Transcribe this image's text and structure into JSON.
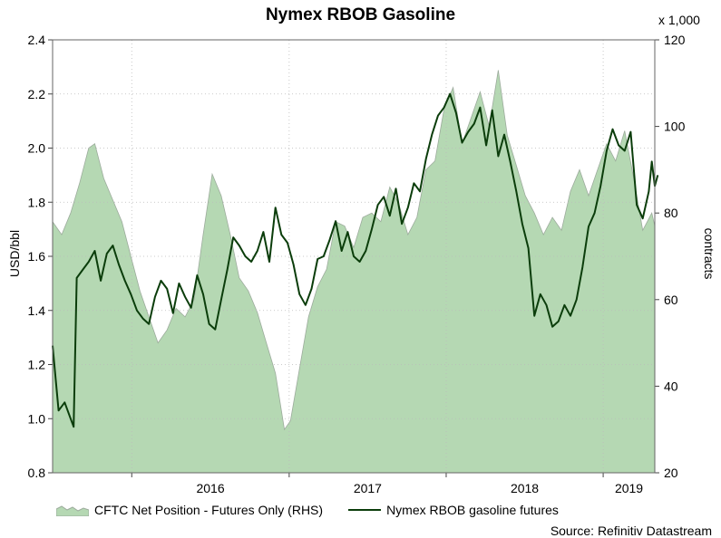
{
  "title": "Nymex RBOB Gasoline",
  "multiplier_label": "x 1,000",
  "y_left_label": "USD/bbl",
  "y_right_label": "contracts",
  "source": "Source: Refinitiv Datastream",
  "legend": {
    "area_label": "CFTC Net Position - Futures Only (RHS)",
    "line_label": "Nymex RBOB gasoline futures"
  },
  "colors": {
    "area_fill": "#b5d8b3",
    "area_edge": "#9cab9c",
    "line": "#0b3d0b",
    "grid": "#bbbbbb"
  },
  "chart_data": {
    "type": "line",
    "x_range": [
      "2015-07-01",
      "2019-05-01"
    ],
    "x_ticks": [
      {
        "label": "2016",
        "date": "2016-01-01"
      },
      {
        "label": "2017",
        "date": "2017-01-01"
      },
      {
        "label": "2018",
        "date": "2018-01-01"
      },
      {
        "label": "2019",
        "date": "2019-01-01"
      }
    ],
    "y_left": {
      "label": "USD/bbl",
      "range": [
        0.8,
        2.4
      ],
      "ticks": [
        "0.8",
        "1.0",
        "1.2",
        "1.4",
        "1.6",
        "1.8",
        "2.0",
        "2.2",
        "2.4"
      ]
    },
    "y_right": {
      "label": "contracts",
      "range": [
        20,
        120
      ],
      "ticks": [
        "20",
        "40",
        "60",
        "80",
        "100",
        "120"
      ]
    },
    "grid": true,
    "legend_position": "bottom",
    "series": [
      {
        "name": "CFTC Net Position - Futures Only (RHS)",
        "kind": "area",
        "axis": "right",
        "points": [
          [
            "2015-07-01",
            78
          ],
          [
            "2015-07-22",
            75
          ],
          [
            "2015-08-12",
            80
          ],
          [
            "2015-09-02",
            87
          ],
          [
            "2015-09-23",
            95
          ],
          [
            "2015-10-07",
            96
          ],
          [
            "2015-10-28",
            88
          ],
          [
            "2015-11-18",
            83
          ],
          [
            "2015-12-09",
            78
          ],
          [
            "2015-12-30",
            70
          ],
          [
            "2016-01-20",
            62
          ],
          [
            "2016-02-10",
            56
          ],
          [
            "2016-03-02",
            50
          ],
          [
            "2016-03-23",
            53
          ],
          [
            "2016-04-13",
            58
          ],
          [
            "2016-05-04",
            56
          ],
          [
            "2016-05-25",
            60
          ],
          [
            "2016-06-15",
            75
          ],
          [
            "2016-07-06",
            89
          ],
          [
            "2016-07-27",
            84
          ],
          [
            "2016-08-17",
            75
          ],
          [
            "2016-09-07",
            65
          ],
          [
            "2016-09-28",
            62
          ],
          [
            "2016-10-19",
            57
          ],
          [
            "2016-11-09",
            50
          ],
          [
            "2016-11-30",
            43
          ],
          [
            "2016-12-21",
            30
          ],
          [
            "2017-01-04",
            32
          ],
          [
            "2017-01-25",
            44
          ],
          [
            "2017-02-15",
            56
          ],
          [
            "2017-03-08",
            63
          ],
          [
            "2017-03-29",
            67
          ],
          [
            "2017-04-19",
            78
          ],
          [
            "2017-05-10",
            77
          ],
          [
            "2017-05-31",
            72
          ],
          [
            "2017-06-21",
            79
          ],
          [
            "2017-07-12",
            80
          ],
          [
            "2017-08-02",
            78
          ],
          [
            "2017-08-23",
            86
          ],
          [
            "2017-09-13",
            82
          ],
          [
            "2017-10-04",
            75
          ],
          [
            "2017-10-25",
            79
          ],
          [
            "2017-11-15",
            90
          ],
          [
            "2017-12-06",
            92
          ],
          [
            "2017-12-27",
            104
          ],
          [
            "2018-01-17",
            109
          ],
          [
            "2018-02-07",
            96
          ],
          [
            "2018-02-28",
            102
          ],
          [
            "2018-03-21",
            108
          ],
          [
            "2018-04-11",
            100
          ],
          [
            "2018-05-02",
            113
          ],
          [
            "2018-05-23",
            98
          ],
          [
            "2018-06-13",
            91
          ],
          [
            "2018-07-04",
            84
          ],
          [
            "2018-07-25",
            80
          ],
          [
            "2018-08-15",
            75
          ],
          [
            "2018-09-05",
            79
          ],
          [
            "2018-09-26",
            76
          ],
          [
            "2018-10-17",
            85
          ],
          [
            "2018-11-07",
            90
          ],
          [
            "2018-11-28",
            84
          ],
          [
            "2018-12-19",
            90
          ],
          [
            "2019-01-09",
            96
          ],
          [
            "2019-01-30",
            92
          ],
          [
            "2019-02-20",
            99
          ],
          [
            "2019-03-13",
            88
          ],
          [
            "2019-04-03",
            76
          ],
          [
            "2019-04-24",
            80
          ],
          [
            "2019-05-01",
            77
          ]
        ]
      },
      {
        "name": "Nymex RBOB gasoline futures",
        "kind": "line",
        "axis": "left",
        "points": [
          [
            "2015-07-01",
            1.27
          ],
          [
            "2015-07-15",
            1.03
          ],
          [
            "2015-07-29",
            1.06
          ],
          [
            "2015-08-12",
            1.0
          ],
          [
            "2015-08-19",
            0.97
          ],
          [
            "2015-08-26",
            1.52
          ],
          [
            "2015-09-09",
            1.55
          ],
          [
            "2015-09-23",
            1.58
          ],
          [
            "2015-10-07",
            1.62
          ],
          [
            "2015-10-21",
            1.51
          ],
          [
            "2015-11-04",
            1.61
          ],
          [
            "2015-11-18",
            1.64
          ],
          [
            "2015-12-02",
            1.57
          ],
          [
            "2015-12-16",
            1.51
          ],
          [
            "2015-12-30",
            1.46
          ],
          [
            "2016-01-13",
            1.4
          ],
          [
            "2016-01-27",
            1.37
          ],
          [
            "2016-02-10",
            1.35
          ],
          [
            "2016-02-24",
            1.45
          ],
          [
            "2016-03-09",
            1.51
          ],
          [
            "2016-03-23",
            1.48
          ],
          [
            "2016-04-06",
            1.39
          ],
          [
            "2016-04-20",
            1.5
          ],
          [
            "2016-05-04",
            1.45
          ],
          [
            "2016-05-18",
            1.41
          ],
          [
            "2016-06-01",
            1.53
          ],
          [
            "2016-06-15",
            1.46
          ],
          [
            "2016-06-29",
            1.35
          ],
          [
            "2016-07-13",
            1.33
          ],
          [
            "2016-07-27",
            1.44
          ],
          [
            "2016-08-10",
            1.55
          ],
          [
            "2016-08-24",
            1.67
          ],
          [
            "2016-09-07",
            1.64
          ],
          [
            "2016-09-21",
            1.6
          ],
          [
            "2016-10-05",
            1.58
          ],
          [
            "2016-10-19",
            1.62
          ],
          [
            "2016-11-02",
            1.69
          ],
          [
            "2016-11-16",
            1.58
          ],
          [
            "2016-11-30",
            1.78
          ],
          [
            "2016-12-14",
            1.68
          ],
          [
            "2016-12-28",
            1.65
          ],
          [
            "2017-01-11",
            1.57
          ],
          [
            "2017-01-25",
            1.46
          ],
          [
            "2017-02-08",
            1.42
          ],
          [
            "2017-02-22",
            1.48
          ],
          [
            "2017-03-08",
            1.59
          ],
          [
            "2017-03-22",
            1.6
          ],
          [
            "2017-04-05",
            1.66
          ],
          [
            "2017-04-19",
            1.73
          ],
          [
            "2017-05-03",
            1.62
          ],
          [
            "2017-05-17",
            1.69
          ],
          [
            "2017-05-31",
            1.6
          ],
          [
            "2017-06-14",
            1.58
          ],
          [
            "2017-06-28",
            1.62
          ],
          [
            "2017-07-12",
            1.7
          ],
          [
            "2017-07-26",
            1.79
          ],
          [
            "2017-08-09",
            1.82
          ],
          [
            "2017-08-23",
            1.75
          ],
          [
            "2017-09-06",
            1.85
          ],
          [
            "2017-09-20",
            1.72
          ],
          [
            "2017-10-04",
            1.78
          ],
          [
            "2017-10-18",
            1.87
          ],
          [
            "2017-11-01",
            1.84
          ],
          [
            "2017-11-15",
            1.96
          ],
          [
            "2017-11-29",
            2.05
          ],
          [
            "2017-12-13",
            2.12
          ],
          [
            "2017-12-27",
            2.15
          ],
          [
            "2018-01-10",
            2.2
          ],
          [
            "2018-01-24",
            2.13
          ],
          [
            "2018-02-07",
            2.02
          ],
          [
            "2018-02-21",
            2.06
          ],
          [
            "2018-03-07",
            2.09
          ],
          [
            "2018-03-21",
            2.15
          ],
          [
            "2018-04-04",
            2.01
          ],
          [
            "2018-04-18",
            2.14
          ],
          [
            "2018-05-02",
            1.97
          ],
          [
            "2018-05-16",
            2.05
          ],
          [
            "2018-05-30",
            1.95
          ],
          [
            "2018-06-13",
            1.84
          ],
          [
            "2018-06-27",
            1.72
          ],
          [
            "2018-07-11",
            1.63
          ],
          [
            "2018-07-25",
            1.38
          ],
          [
            "2018-08-08",
            1.46
          ],
          [
            "2018-08-22",
            1.42
          ],
          [
            "2018-09-05",
            1.34
          ],
          [
            "2018-09-19",
            1.36
          ],
          [
            "2018-10-03",
            1.42
          ],
          [
            "2018-10-17",
            1.38
          ],
          [
            "2018-10-31",
            1.44
          ],
          [
            "2018-11-14",
            1.56
          ],
          [
            "2018-11-28",
            1.71
          ],
          [
            "2018-12-12",
            1.76
          ],
          [
            "2018-12-26",
            1.86
          ],
          [
            "2019-01-09",
            1.99
          ],
          [
            "2019-01-23",
            2.07
          ],
          [
            "2019-02-06",
            2.01
          ],
          [
            "2019-02-20",
            1.99
          ],
          [
            "2019-03-06",
            2.06
          ],
          [
            "2019-03-20",
            1.79
          ],
          [
            "2019-04-03",
            1.74
          ],
          [
            "2019-04-17",
            1.84
          ],
          [
            "2019-04-24",
            1.95
          ],
          [
            "2019-05-01",
            1.86
          ],
          [
            "2019-05-08",
            1.9
          ]
        ]
      }
    ]
  }
}
